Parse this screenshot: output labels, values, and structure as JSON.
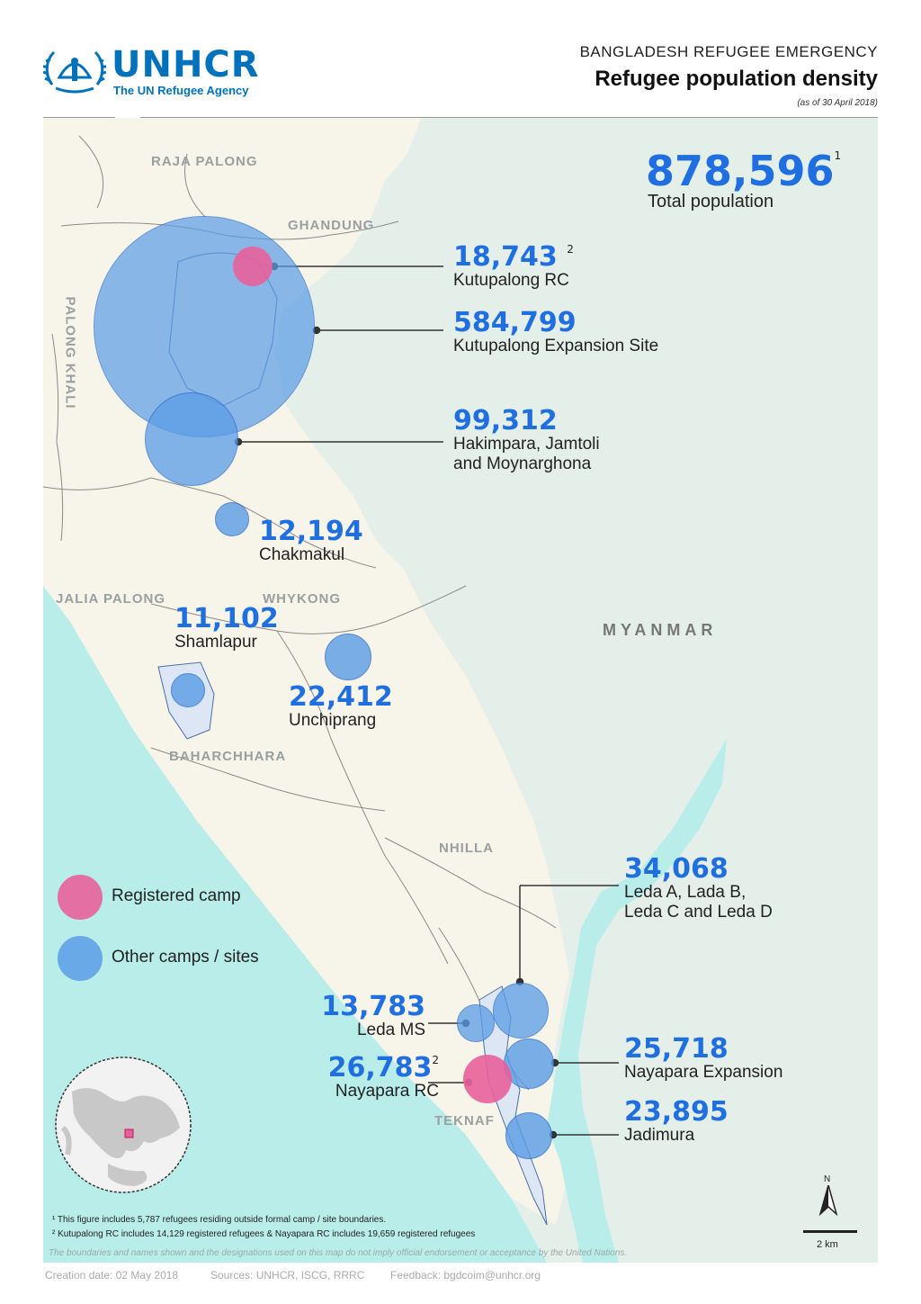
{
  "header": {
    "logo_name": "UNHCR",
    "logo_tagline": "The UN Refugee Agency",
    "subtitle": "BANGLADESH REFUGEE EMERGENCY",
    "title": "Refugee population density",
    "date_note": "(as of 30 April 2018)"
  },
  "total": {
    "value": "878,596",
    "sup": "1",
    "label": "Total population"
  },
  "regions": {
    "raja_palong": "RAJA PALONG",
    "ghandung": "GHANDUNG",
    "palong_khali": "PALONG KHALI",
    "jalia_palong": "JALIA PALONG",
    "whykong": "WHYKONG",
    "baharchhara": "BAHARCHHARA",
    "nhilla": "NHILLA",
    "teknaf": "TEKNAF",
    "myanmar": "MYANMAR"
  },
  "sites": [
    {
      "value": "18,743",
      "sup": "2",
      "name": "Kutupalong RC",
      "type": "registered"
    },
    {
      "value": "584,799",
      "sup": "",
      "name": "Kutupalong Expansion Site",
      "type": "other"
    },
    {
      "value": "99,312",
      "sup": "",
      "name": "Hakimpara, Jamtoli",
      "name2": "and Moynarghona",
      "type": "other"
    },
    {
      "value": "12,194",
      "sup": "",
      "name": "Chakmakul",
      "type": "other"
    },
    {
      "value": "11,102",
      "sup": "",
      "name": "Shamlapur",
      "type": "other"
    },
    {
      "value": "22,412",
      "sup": "",
      "name": "Unchiprang",
      "type": "other"
    },
    {
      "value": "34,068",
      "sup": "",
      "name": "Leda A, Lada B,",
      "name2": "Leda C and Leda D",
      "type": "other"
    },
    {
      "value": "13,783",
      "sup": "",
      "name": "Leda MS",
      "type": "other"
    },
    {
      "value": "26,783",
      "sup": "2",
      "name": "Nayapara RC",
      "type": "registered"
    },
    {
      "value": "25,718",
      "sup": "",
      "name": "Nayapara Expansion",
      "type": "other"
    },
    {
      "value": "23,895",
      "sup": "",
      "name": "Jadimura",
      "type": "other"
    }
  ],
  "legend": {
    "registered": "Registered camp",
    "other": "Other camps / sites"
  },
  "colors": {
    "registered": "#e8609b",
    "other": "#5a9ce6",
    "land": "#f7f4ea",
    "sea": "#b8ede9",
    "myanmar": "#e5efea",
    "accent": "#1f6fe0"
  },
  "north_label": "N",
  "scale_label": "2 km",
  "footnotes": {
    "f1": "¹ This figure includes 5,787 refugees residing outside formal camp / site boundaries.",
    "f2": "² Kutupalong RC includes 14,129 registered refugees & Nayapara RC includes 19,659 registered refugees"
  },
  "disclaimer": "The boundaries and names shown and the designations used on this map do not imply official endorsement or acceptance by the United Nations.",
  "meta": {
    "creation": "Creation date: 02 May 2018",
    "sources": "Sources: UNHCR, ISCG, RRRC",
    "feedback": "Feedback: bgdcoim@unhcr.org"
  }
}
